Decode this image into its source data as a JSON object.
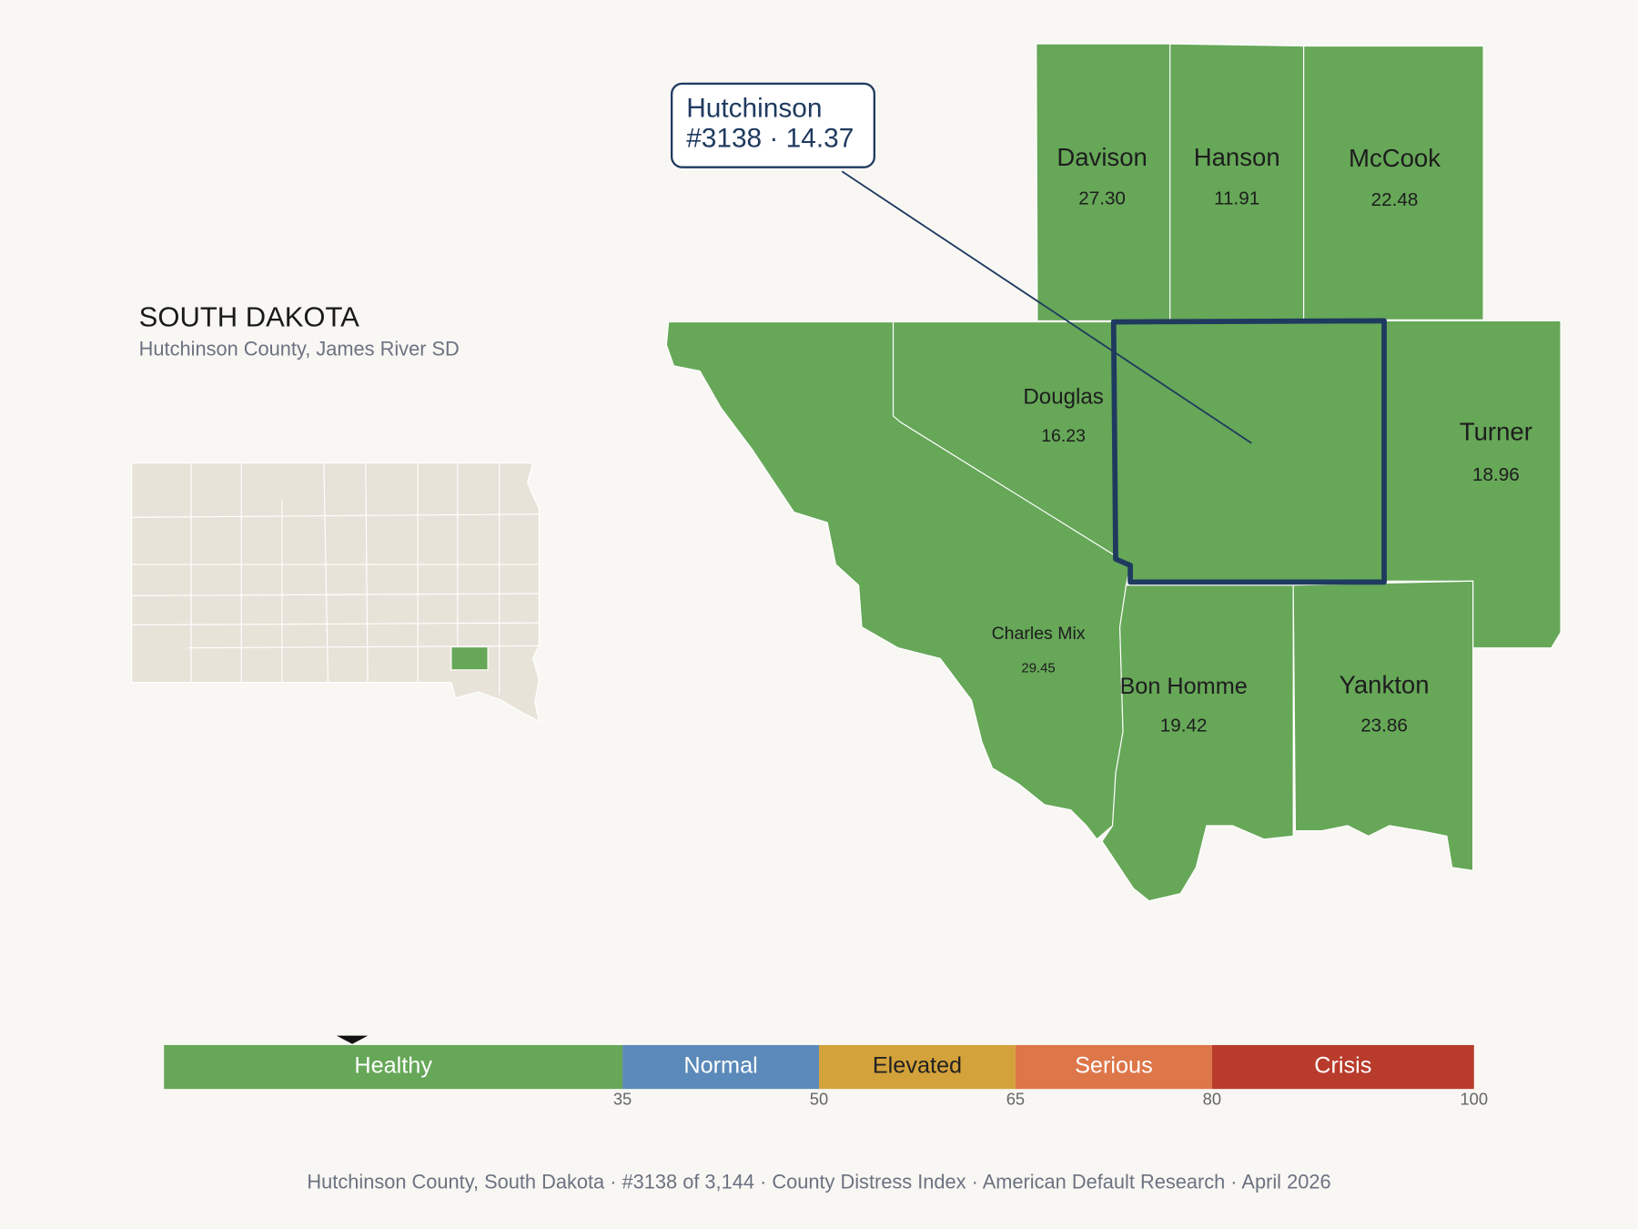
{
  "header": {
    "title": "SOUTH DAKOTA",
    "subtitle": "Hutchinson County, James River SD"
  },
  "callout": {
    "name": "Hutchinson",
    "detail": "#3138 · 14.37",
    "score": 14.37
  },
  "counties": [
    {
      "name": "Davison",
      "value": 27.3,
      "value_label": "27.30"
    },
    {
      "name": "Hanson",
      "value": 11.91
    },
    {
      "name": "McCook",
      "value": 22.48
    },
    {
      "name": "Douglas",
      "value": 16.23
    },
    {
      "name": "Turner",
      "value": 18.96
    },
    {
      "name": "Charles Mix",
      "value": 29.45
    },
    {
      "name": "Bon Homme",
      "value": 19.42
    },
    {
      "name": "Yankton",
      "value": 23.86
    }
  ],
  "scale": {
    "min": 0,
    "max": 100,
    "ticks": [
      35,
      50,
      65,
      80,
      100
    ],
    "bands": [
      {
        "label": "Healthy",
        "color": "#66a758",
        "text_color": "#ffffff"
      },
      {
        "label": "Normal",
        "color": "#5b8aba",
        "text_color": "#ffffff"
      },
      {
        "label": "Elevated",
        "color": "#d4a23a",
        "text_color": "#222222"
      },
      {
        "label": "Serious",
        "color": "#dd7649",
        "text_color": "#ffffff"
      },
      {
        "label": "Crisis",
        "color": "#b83b2b",
        "text_color": "#ffffff"
      }
    ]
  },
  "footer": "Hutchinson County, South Dakota  ·  #3138 of 3,144  ·  County Distress Index  ·  American Default Research  ·  April 2026"
}
